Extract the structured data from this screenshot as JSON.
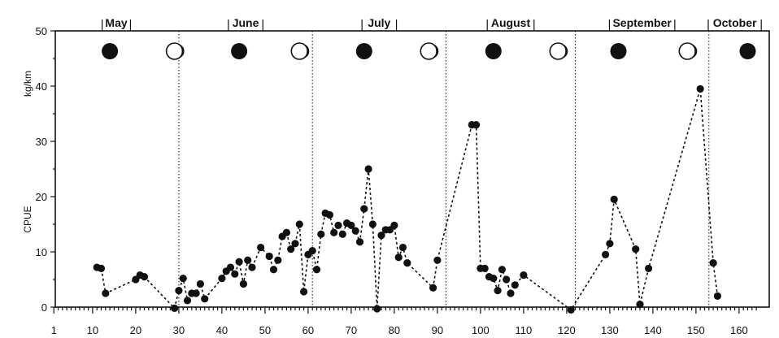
{
  "chart_data": {
    "type": "scatter",
    "title": "",
    "xlabel": "",
    "ylabel": "kg/km",
    "ylabel_left": "CPUE",
    "xlim": [
      1,
      165
    ],
    "ylim": [
      0,
      50
    ],
    "x_ticks": [
      1,
      10,
      20,
      30,
      40,
      50,
      60,
      70,
      80,
      90,
      100,
      110,
      120,
      130,
      140,
      150,
      160
    ],
    "y_ticks": [
      0,
      10,
      20,
      30,
      40,
      50
    ],
    "grid": false,
    "months": [
      {
        "label": "May",
        "start": 1,
        "end": 30
      },
      {
        "label": "June",
        "start": 30,
        "end": 61
      },
      {
        "label": "July",
        "start": 61,
        "end": 92
      },
      {
        "label": "August",
        "start": 92,
        "end": 122
      },
      {
        "label": "September",
        "start": 122,
        "end": 153
      },
      {
        "label": "October",
        "start": 153,
        "end": 165
      }
    ],
    "month_dividers": [
      30,
      61,
      92,
      122,
      153
    ],
    "moon_phases": [
      {
        "x": 14,
        "phase": "new"
      },
      {
        "x": 29,
        "phase": "full"
      },
      {
        "x": 44,
        "phase": "new"
      },
      {
        "x": 58,
        "phase": "full"
      },
      {
        "x": 73,
        "phase": "new"
      },
      {
        "x": 88,
        "phase": "full"
      },
      {
        "x": 103,
        "phase": "new"
      },
      {
        "x": 118,
        "phase": "full"
      },
      {
        "x": 132,
        "phase": "new"
      },
      {
        "x": 148,
        "phase": "full"
      },
      {
        "x": 162,
        "phase": "new"
      }
    ],
    "series": [
      {
        "points": [
          [
            11,
            7.2
          ],
          [
            12,
            7.0
          ],
          [
            13,
            2.5
          ],
          [
            20,
            5.0
          ],
          [
            21,
            5.8
          ],
          [
            22,
            5.5
          ],
          [
            29,
            -0.2
          ],
          [
            30,
            3.0
          ],
          [
            31,
            5.2
          ],
          [
            32,
            1.2
          ],
          [
            33,
            2.5
          ],
          [
            34,
            2.5
          ],
          [
            35,
            4.2
          ],
          [
            36,
            1.5
          ],
          [
            40,
            5.2
          ],
          [
            41,
            6.5
          ],
          [
            42,
            7.2
          ],
          [
            43,
            6.0
          ],
          [
            44,
            8.2
          ],
          [
            45,
            4.2
          ],
          [
            46,
            8.5
          ],
          [
            47,
            7.2
          ],
          [
            49,
            10.8
          ],
          [
            51,
            9.2
          ],
          [
            52,
            6.8
          ],
          [
            53,
            8.5
          ],
          [
            54,
            12.8
          ],
          [
            55,
            13.5
          ],
          [
            56,
            10.5
          ],
          [
            57,
            11.5
          ],
          [
            58,
            15.0
          ],
          [
            59,
            2.8
          ],
          [
            60,
            9.5
          ],
          [
            61,
            10.2
          ],
          [
            62,
            6.8
          ],
          [
            63,
            13.2
          ],
          [
            64,
            17.0
          ],
          [
            65,
            16.7
          ],
          [
            66,
            13.5
          ],
          [
            67,
            14.8
          ],
          [
            68,
            13.2
          ],
          [
            69,
            15.2
          ],
          [
            70,
            14.8
          ],
          [
            71,
            13.8
          ],
          [
            72,
            11.8
          ],
          [
            73,
            17.8
          ],
          [
            74,
            25.0
          ],
          [
            75,
            15.0
          ],
          [
            76,
            -0.3
          ],
          [
            77,
            13.0
          ],
          [
            78,
            14.0
          ],
          [
            79,
            14.0
          ],
          [
            80,
            14.8
          ],
          [
            81,
            9.0
          ],
          [
            82,
            10.8
          ],
          [
            83,
            8.0
          ],
          [
            89,
            3.5
          ],
          [
            90,
            8.5
          ],
          [
            98,
            33.0
          ],
          [
            99,
            33.0
          ],
          [
            100,
            7.0
          ],
          [
            101,
            7.0
          ],
          [
            102,
            5.5
          ],
          [
            103,
            5.2
          ],
          [
            104,
            3.0
          ],
          [
            105,
            6.8
          ],
          [
            106,
            5.0
          ],
          [
            107,
            2.5
          ],
          [
            108,
            4.0
          ],
          [
            110,
            5.8
          ],
          [
            121,
            -0.5
          ],
          [
            129,
            9.5
          ],
          [
            130,
            11.5
          ],
          [
            131,
            19.5
          ],
          [
            136,
            10.5
          ],
          [
            137,
            0.5
          ],
          [
            139,
            7.0
          ],
          [
            151,
            39.5
          ],
          [
            154,
            8.0
          ],
          [
            155,
            2.0
          ]
        ]
      }
    ]
  }
}
